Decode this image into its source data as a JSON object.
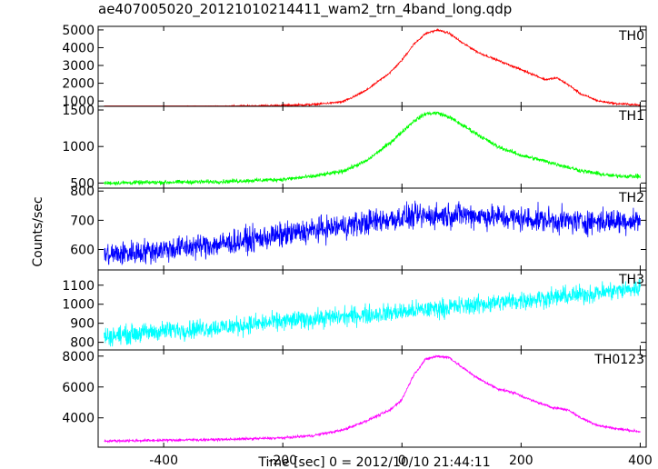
{
  "chart_data": {
    "type": "line",
    "title": "ae407005020_20121010214411_wam2_trn_4band_long.qdp",
    "xlabel": "Time [sec] 0 = 2012/10/10 21:44:11",
    "ylabel": "Counts/sec",
    "xlim": [
      -510,
      410
    ],
    "x_ticks": [
      -400,
      -200,
      0,
      200,
      400
    ],
    "panels": [
      {
        "name": "TH0",
        "color": "#ff0000",
        "ylim": [
          700,
          5200
        ],
        "y_ticks": [
          1000,
          2000,
          3000,
          4000,
          5000
        ],
        "noise": 40,
        "x": [
          -500,
          -400,
          -300,
          -200,
          -150,
          -100,
          -80,
          -60,
          -40,
          -20,
          0,
          20,
          40,
          60,
          80,
          100,
          130,
          160,
          190,
          220,
          240,
          260,
          280,
          300,
          330,
          360,
          390,
          400
        ],
        "values": [
          600,
          650,
          700,
          750,
          800,
          950,
          1250,
          1600,
          2100,
          2600,
          3300,
          4200,
          4800,
          5000,
          4800,
          4300,
          3700,
          3300,
          2900,
          2500,
          2200,
          2300,
          1900,
          1400,
          1000,
          850,
          800,
          750
        ]
      },
      {
        "name": "TH1",
        "color": "#00ff00",
        "ylim": [
          430,
          1550
        ],
        "y_ticks": [
          500,
          1000,
          1500
        ],
        "noise": 20,
        "x": [
          -500,
          -400,
          -300,
          -200,
          -150,
          -100,
          -60,
          -20,
          0,
          20,
          40,
          60,
          80,
          100,
          130,
          160,
          200,
          250,
          300,
          350,
          400
        ],
        "values": [
          500,
          510,
          520,
          550,
          590,
          660,
          800,
          1050,
          1200,
          1350,
          1450,
          1460,
          1400,
          1300,
          1150,
          1000,
          880,
          780,
          670,
          600,
          590
        ]
      },
      {
        "name": "TH2",
        "color": "#0000ff",
        "ylim": [
          530,
          810
        ],
        "y_ticks": [
          600,
          700,
          800
        ],
        "noise": 30,
        "x": [
          -500,
          -400,
          -300,
          -200,
          -100,
          0,
          100,
          200,
          300,
          400
        ],
        "values": [
          580,
          600,
          620,
          650,
          680,
          710,
          720,
          705,
          695,
          700
        ]
      },
      {
        "name": "TH3",
        "color": "#00ffff",
        "ylim": [
          760,
          1180
        ],
        "y_ticks": [
          800,
          900,
          1000,
          1100
        ],
        "noise": 35,
        "x": [
          -500,
          -400,
          -300,
          -200,
          -100,
          0,
          100,
          200,
          300,
          400
        ],
        "values": [
          830,
          860,
          880,
          910,
          935,
          960,
          990,
          1020,
          1050,
          1085
        ]
      },
      {
        "name": "TH0123",
        "color": "#ff00ff",
        "ylim": [
          2100,
          8400
        ],
        "y_ticks": [
          4000,
          6000,
          8000
        ],
        "noise": 60,
        "x": [
          -500,
          -400,
          -300,
          -200,
          -150,
          -100,
          -60,
          -20,
          0,
          20,
          40,
          60,
          80,
          100,
          130,
          160,
          190,
          220,
          250,
          280,
          300,
          330,
          360,
          400
        ],
        "values": [
          2500,
          2550,
          2600,
          2700,
          2850,
          3200,
          3800,
          4500,
          5200,
          6800,
          7800,
          8000,
          7900,
          7300,
          6500,
          5900,
          5600,
          5100,
          4700,
          4500,
          4000,
          3500,
          3300,
          3100
        ]
      }
    ]
  }
}
